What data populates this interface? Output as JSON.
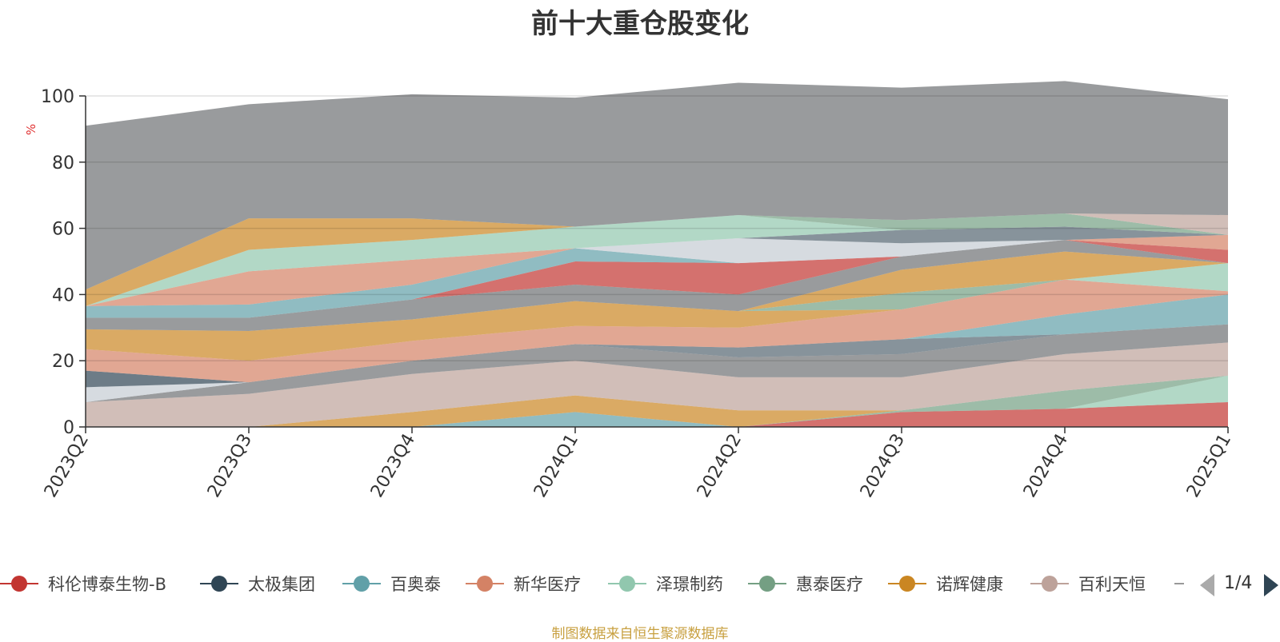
{
  "title": "前十大重仓股变化",
  "source": "制图数据来自恒生聚源数据库",
  "pager": {
    "text": "1/4"
  },
  "legend": {
    "items": [
      {
        "name": "科伦博泰生物-B",
        "color": "#c23531"
      },
      {
        "name": "太极集团",
        "color": "#2f4554"
      },
      {
        "name": "百奥泰",
        "color": "#61a0a8"
      },
      {
        "name": "新华医疗",
        "color": "#d48265"
      },
      {
        "name": "泽璟制药",
        "color": "#91c7ae"
      },
      {
        "name": "惠泰医疗",
        "color": "#749f83"
      },
      {
        "name": "诺辉健康",
        "color": "#ca8622"
      },
      {
        "name": "百利天恒",
        "color": "#bda29a"
      }
    ]
  },
  "chart_data": {
    "type": "area",
    "stacked": true,
    "ylabel": "%",
    "ylim": [
      0,
      100
    ],
    "yticks": [
      0,
      20,
      40,
      60,
      80,
      100
    ],
    "categories": [
      "2023Q2",
      "2023Q3",
      "2023Q4",
      "2024Q1",
      "2024Q2",
      "2024Q3",
      "2024Q4",
      "2025Q1"
    ],
    "grid": true,
    "legend_position": "bottom",
    "colors": [
      "#c23531",
      "#2f4554",
      "#61a0a8",
      "#d48265",
      "#91c7ae",
      "#749f83",
      "#ca8622",
      "#bda29a",
      "#6e7074",
      "#546570",
      "#c4ccd3"
    ],
    "series": [
      {
        "color": "#c23531",
        "values": [
          0,
          0,
          0,
          0,
          0,
          4.5,
          5.5,
          7.5
        ]
      },
      {
        "color": "#91c7ae",
        "values": [
          0,
          0,
          0,
          0,
          0,
          0,
          0,
          8
        ]
      },
      {
        "color": "#749f83",
        "values": [
          0,
          0,
          0,
          0,
          0,
          0.5,
          5.5,
          0
        ]
      },
      {
        "color": "#61a0a8",
        "values": [
          0,
          0,
          0,
          4.5,
          0,
          0,
          0,
          0
        ]
      },
      {
        "color": "#ca8622",
        "values": [
          0,
          0,
          4.5,
          5,
          5,
          0,
          0,
          0
        ]
      },
      {
        "color": "#d48265",
        "values": [
          0,
          0,
          0,
          0,
          0,
          0,
          0,
          0
        ]
      },
      {
        "color": "#bda29a",
        "values": [
          7.5,
          10,
          11.5,
          10.5,
          10,
          10,
          11,
          10
        ]
      },
      {
        "color": "#6e7074",
        "values": [
          0,
          3.5,
          4,
          5,
          6,
          7,
          6,
          5.5
        ]
      },
      {
        "color": "#546570",
        "values": [
          0,
          0,
          0,
          0,
          3,
          4.5,
          0,
          0
        ]
      },
      {
        "color": "#61a0a8",
        "values": [
          0,
          0,
          0,
          0,
          0,
          0,
          6,
          9
        ]
      },
      {
        "color": "#c4ccd3",
        "values": [
          4.5,
          0,
          0,
          0,
          0,
          0,
          0,
          0
        ]
      },
      {
        "color": "#2f4554",
        "values": [
          5,
          0,
          0,
          0,
          0,
          0,
          0,
          0
        ]
      },
      {
        "color": "#d48265",
        "values": [
          6.5,
          6.5,
          6,
          5.5,
          6,
          9,
          10.5,
          1
        ]
      },
      {
        "color": "#ca8622",
        "values": [
          6,
          9,
          6.5,
          7.5,
          5,
          0,
          0,
          0
        ]
      },
      {
        "color": "#749f83",
        "values": [
          0,
          0,
          0,
          0,
          0,
          5,
          0,
          0
        ]
      },
      {
        "color": "#91c7ae",
        "values": [
          0,
          0,
          0,
          0,
          0,
          0,
          0,
          8.5
        ]
      },
      {
        "color": "#ca8622",
        "values": [
          0,
          0,
          0,
          0,
          0,
          7,
          8.5,
          0
        ]
      },
      {
        "color": "#6e7074",
        "values": [
          3.5,
          4,
          6,
          5,
          5,
          4,
          3.5,
          0
        ]
      },
      {
        "color": "#c23531",
        "values": [
          0,
          0,
          0,
          7,
          9.5,
          0,
          0,
          4
        ]
      },
      {
        "color": "#61a0a8",
        "values": [
          3.5,
          4,
          4.5,
          4,
          0,
          0,
          0,
          0
        ]
      },
      {
        "color": "#c4ccd3",
        "values": [
          0,
          0,
          0,
          0,
          7.5,
          4,
          0,
          0
        ]
      },
      {
        "color": "#d48265",
        "values": [
          0,
          10,
          7.5,
          0,
          0,
          0,
          0,
          4.5
        ]
      },
      {
        "color": "#546570",
        "values": [
          0,
          0,
          0,
          0,
          0,
          4,
          4,
          0
        ]
      },
      {
        "color": "#2f4554",
        "values": [
          0,
          0,
          0,
          0,
          0,
          0,
          0,
          0
        ]
      },
      {
        "color": "#91c7ae",
        "values": [
          0,
          6.5,
          6,
          6.5,
          7,
          0,
          0,
          0
        ]
      },
      {
        "color": "#ca8622",
        "values": [
          5,
          9.5,
          6.5,
          0,
          0,
          0,
          0,
          0
        ]
      },
      {
        "color": "#749f83",
        "values": [
          0,
          0,
          0,
          0,
          0,
          3,
          4,
          0
        ]
      },
      {
        "color": "#bda29a",
        "values": [
          0,
          0,
          0,
          0,
          0,
          0,
          0,
          6
        ]
      },
      {
        "color": "#6e7074",
        "values": [
          49.5,
          34.5,
          37.5,
          39,
          40,
          40,
          40,
          35
        ]
      }
    ]
  }
}
